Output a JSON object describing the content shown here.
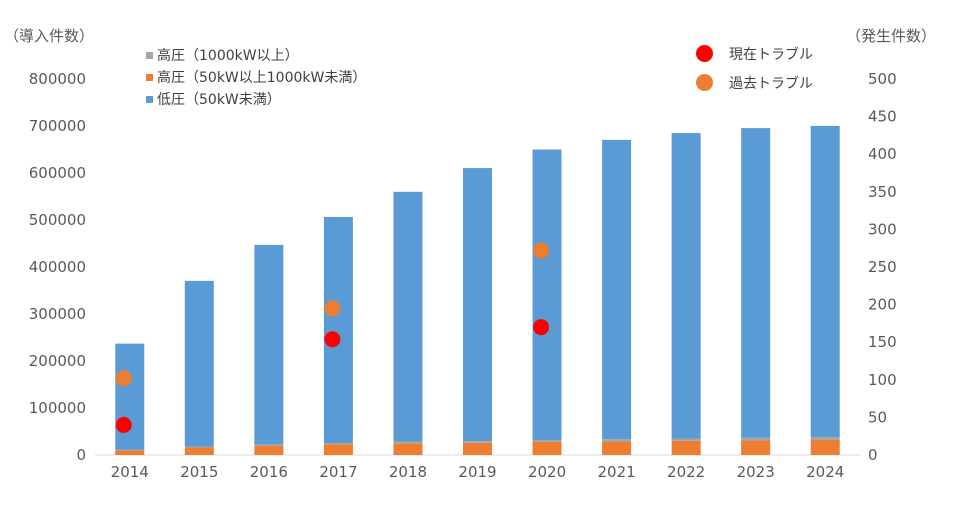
{
  "colors": {
    "low": "#5b9bd5",
    "mid": "#ed7d31",
    "high": "#a5a5a5",
    "current": "#ff0000",
    "past": "#ed7d31",
    "axis": "#d9d9d9",
    "text": "#595959"
  },
  "chart_data": {
    "type": "bar",
    "stacked": true,
    "grid": false,
    "categories": [
      "2014",
      "2015",
      "2016",
      "2017",
      "2018",
      "2019",
      "2020",
      "2021",
      "2022",
      "2023",
      "2024"
    ],
    "ylabel": "（導入件数）",
    "ylabel2": "（発生件数）",
    "ylim": [
      0,
      800000
    ],
    "yticks": [
      "0",
      "100000",
      "200000",
      "300000",
      "400000",
      "500000",
      "600000",
      "700000",
      "800000"
    ],
    "ylim2": [
      0,
      500
    ],
    "yticks2": [
      "0",
      "50",
      "100",
      "150",
      "200",
      "250",
      "300",
      "350",
      "400",
      "450",
      "500"
    ],
    "series": [
      {
        "name": "高圧（1000kW以上）",
        "axis": "left",
        "values": [
          1000,
          1500,
          2000,
          2500,
          3000,
          3500,
          4000,
          4500,
          5000,
          5500,
          6000
        ]
      },
      {
        "name": "高圧（50kW以上1000kW未満）",
        "axis": "left",
        "values": [
          10000,
          16000,
          20000,
          23000,
          25000,
          26000,
          28000,
          29000,
          30000,
          31000,
          32000
        ]
      },
      {
        "name": "低圧（50kW未満）",
        "axis": "left",
        "values": [
          226000,
          353000,
          425000,
          481000,
          532000,
          581000,
          618000,
          637000,
          650000,
          659000,
          662000
        ]
      }
    ],
    "points": [
      {
        "name": "現在トラブル",
        "axis": "right",
        "type": "scatter",
        "x": [
          "2014",
          "2017",
          "2020"
        ],
        "values": [
          40,
          154,
          170
        ]
      },
      {
        "name": "過去トラブル",
        "axis": "right",
        "type": "scatter",
        "x": [
          "2014",
          "2017",
          "2020"
        ],
        "values": [
          102,
          195,
          272
        ]
      }
    ]
  }
}
